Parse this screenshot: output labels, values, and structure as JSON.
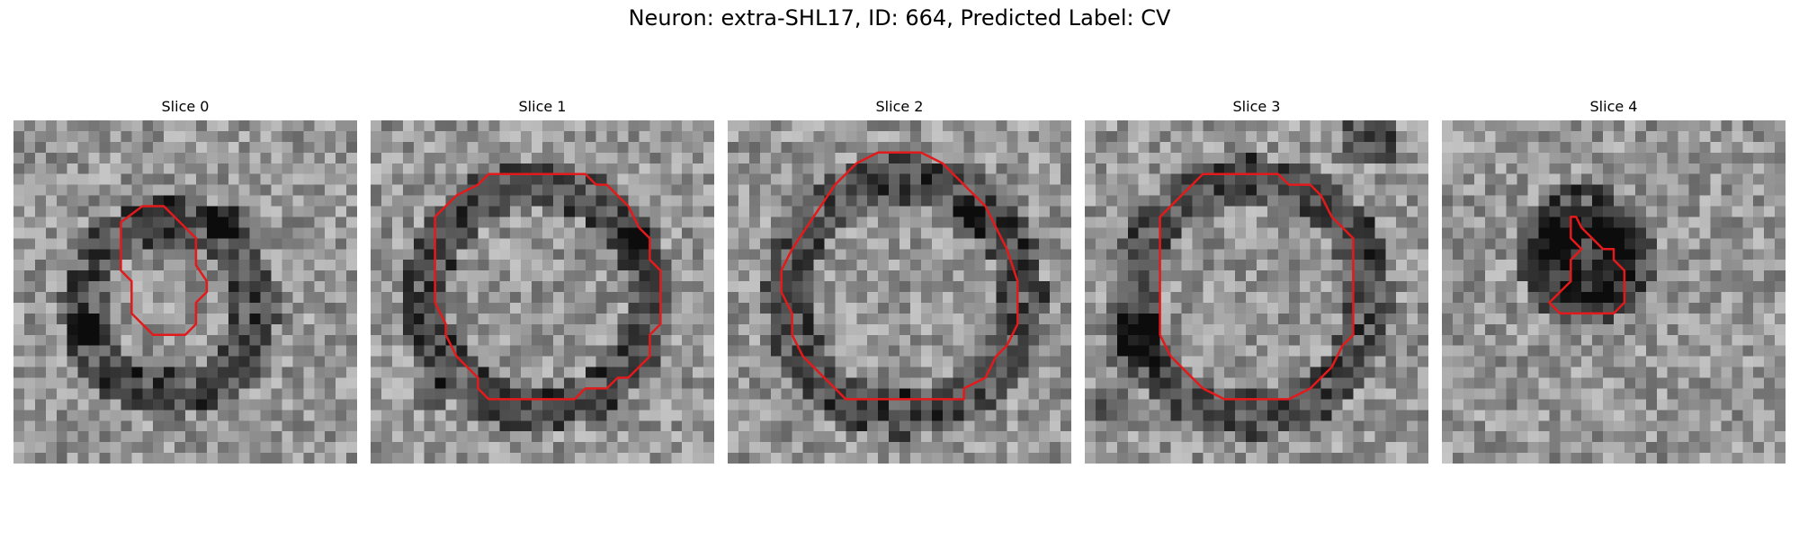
{
  "figure": {
    "title": "Neuron: extra-SHL17, ID: 664, Predicted Label: CV"
  },
  "contour_color": "#e31a1c",
  "image_colormap": "grayscale",
  "slices": [
    {
      "title": "Slice 0"
    },
    {
      "title": "Slice 1"
    },
    {
      "title": "Slice 2"
    },
    {
      "title": "Slice 3"
    },
    {
      "title": "Slice 4"
    }
  ]
}
